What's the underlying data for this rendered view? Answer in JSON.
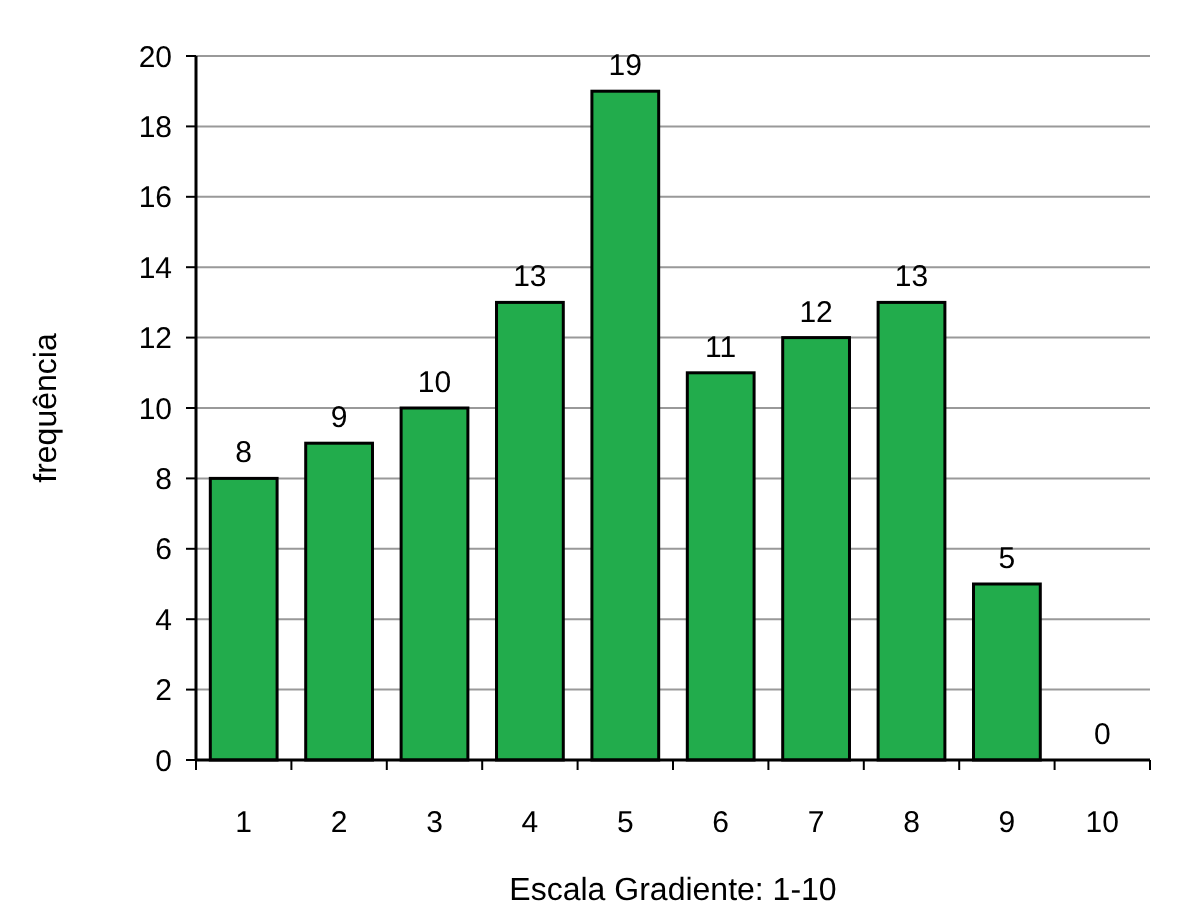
{
  "chart_data": {
    "type": "bar",
    "xlabel": "Escala Gradiente: 1-10",
    "ylabel": "frequência",
    "categories": [
      "1",
      "2",
      "3",
      "4",
      "5",
      "6",
      "7",
      "8",
      "9",
      "10"
    ],
    "values": [
      8,
      9,
      10,
      13,
      19,
      11,
      12,
      13,
      5,
      0
    ],
    "color": "#22ac4c",
    "ylim": [
      0,
      20
    ],
    "yticks": [
      0,
      2,
      4,
      6,
      8,
      10,
      12,
      14,
      16,
      18,
      20
    ],
    "grid": "y",
    "data_labels": true
  }
}
